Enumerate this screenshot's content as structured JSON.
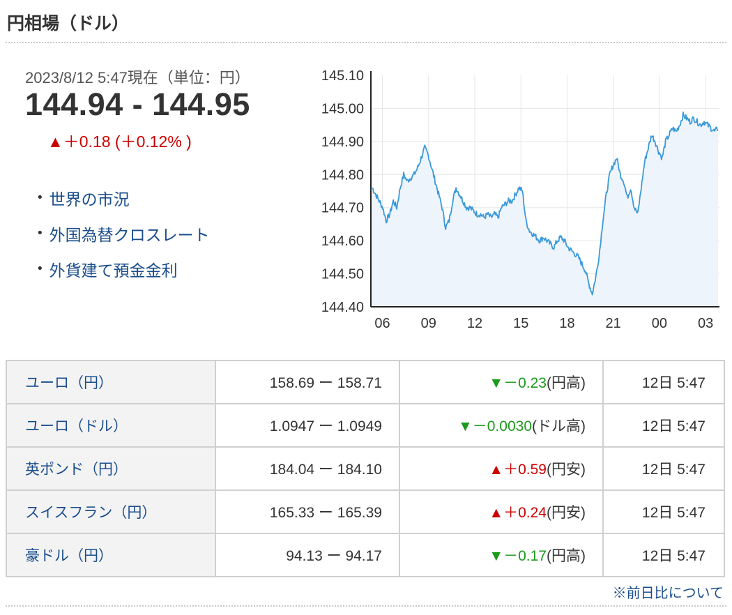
{
  "header": {
    "title": "円相場（ドル）"
  },
  "quote": {
    "timestamp": "2023/8/12 5:47現在（単位：円）",
    "price": "144.94 - 144.95",
    "change": "▲＋0.18 (＋0.12% )",
    "direction": "up"
  },
  "links": [
    {
      "label": "世界の市況"
    },
    {
      "label": "外国為替クロスレート"
    },
    {
      "label": "外貨建て預金金利"
    }
  ],
  "chart_data": {
    "type": "area",
    "title": "",
    "xlabel": "",
    "ylabel": "",
    "ylim": [
      144.4,
      145.1
    ],
    "yticks": [
      "145.10",
      "145.00",
      "144.90",
      "144.80",
      "144.70",
      "144.60",
      "144.50",
      "144.40"
    ],
    "xticks": [
      "06",
      "09",
      "12",
      "15",
      "18",
      "21",
      "00",
      "03"
    ],
    "grid": true,
    "line_color": "#3a9ad9",
    "fill_color": "#eef4fb",
    "series": [
      {
        "values": [
          144.76,
          144.74,
          144.72,
          144.7,
          144.66,
          144.68,
          144.72,
          144.7,
          144.76,
          144.8,
          144.78,
          144.79,
          144.8,
          144.82,
          144.85,
          144.88,
          144.86,
          144.82,
          144.78,
          144.74,
          144.7,
          144.64,
          144.66,
          144.72,
          144.76,
          144.74,
          144.72,
          144.7,
          144.7,
          144.69,
          144.68,
          144.68,
          144.67,
          144.68,
          144.67,
          144.68,
          144.67,
          144.7,
          144.71,
          144.72,
          144.72,
          144.74,
          144.76,
          144.75,
          144.66,
          144.63,
          144.62,
          144.61,
          144.6,
          144.61,
          144.6,
          144.59,
          144.58,
          144.6,
          144.61,
          144.6,
          144.58,
          144.57,
          144.56,
          144.55,
          144.53,
          144.51,
          144.47,
          144.44,
          144.49,
          144.56,
          144.66,
          144.74,
          144.8,
          144.83,
          144.85,
          144.8,
          144.78,
          144.73,
          144.76,
          144.7,
          144.68,
          144.76,
          144.84,
          144.88,
          144.92,
          144.9,
          144.87,
          144.85,
          144.9,
          144.92,
          144.94,
          144.93,
          144.95,
          144.98,
          144.97,
          144.96,
          144.97,
          144.96,
          144.95,
          144.96,
          144.95,
          144.94,
          144.93,
          144.94
        ]
      }
    ]
  },
  "rates": {
    "rows": [
      {
        "name": "ユーロ（円）",
        "bidask": "158.69 ー 158.71",
        "change": "▼－0.23",
        "note": "(円高)",
        "direction": "down",
        "time": "12日 5:47"
      },
      {
        "name": "ユーロ（ドル）",
        "bidask": "1.0947 ー 1.0949",
        "change": "▼－0.0030",
        "note": "(ドル高)",
        "direction": "down",
        "time": "12日 5:47"
      },
      {
        "name": "英ポンド（円）",
        "bidask": "184.04 ー 184.10",
        "change": "▲＋0.59",
        "note": "(円安)",
        "direction": "up",
        "time": "12日 5:47"
      },
      {
        "name": "スイスフラン（円）",
        "bidask": "165.33 ー 165.39",
        "change": "▲＋0.24",
        "note": "(円安)",
        "direction": "up",
        "time": "12日 5:47"
      },
      {
        "name": "豪ドル（円）",
        "bidask": "94.13 ー 94.17",
        "change": "▼－0.17",
        "note": "(円高)",
        "direction": "down",
        "time": "12日 5:47"
      }
    ]
  },
  "footer": {
    "note_link": "※前日比について"
  },
  "colors": {
    "up": "#cc0000",
    "down": "#1a9a1a",
    "link": "#1a4d8c"
  }
}
